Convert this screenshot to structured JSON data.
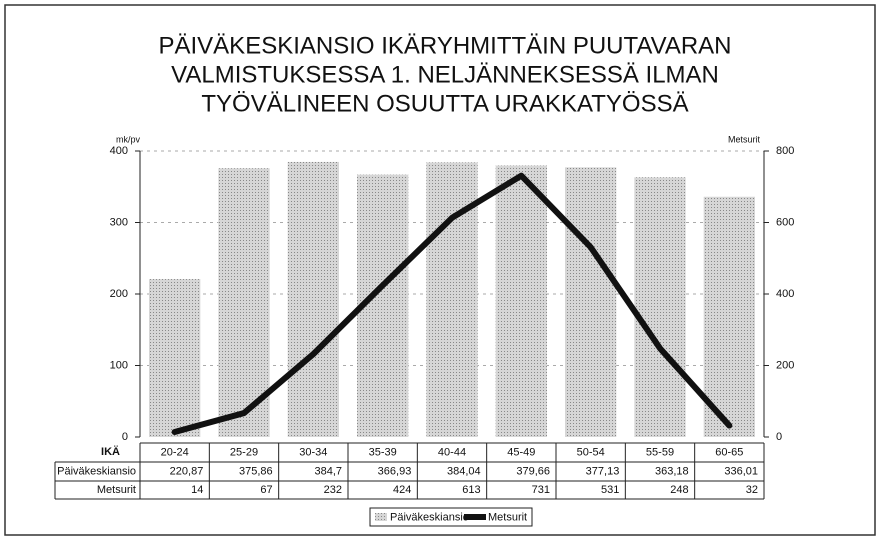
{
  "chart_data": {
    "type": "bar",
    "title": [
      "PÄIVÄKESKIANSIO IKÄRYHMITTÄIN PUUTAVARAN",
      "VALMISTUKSESSA 1. NELJÄNNEKSESSÄ ILMAN",
      "TYÖVÄLINEEN OSUUTTA URAKKATYÖSSÄ"
    ],
    "y_label": "mk/pv",
    "y2_label": "Metsurit",
    "table_header": "IKÄ",
    "categories": [
      "20-24",
      "25-29",
      "30-34",
      "35-39",
      "40-44",
      "45-49",
      "50-54",
      "55-59",
      "60-65"
    ],
    "series": [
      {
        "name": "Päiväkeskiansio",
        "type": "bar",
        "color": "#c4c4c4",
        "values": [
          220.87,
          375.86,
          384.7,
          366.93,
          384.04,
          379.66,
          377.13,
          363.18,
          336.01
        ],
        "value_labels": [
          "220,87",
          "375,86",
          "384,7",
          "366,93",
          "384,04",
          "379,66",
          "377,13",
          "363,18",
          "336,01"
        ]
      },
      {
        "name": "Metsurit",
        "type": "line",
        "axis": "y2",
        "color": "#111111",
        "values": [
          14,
          67,
          232,
          424,
          613,
          731,
          531,
          248,
          32
        ]
      }
    ],
    "ylim": [
      0,
      400
    ],
    "yticks": [
      0,
      100,
      200,
      300,
      400
    ],
    "y2lim": [
      0,
      800
    ],
    "y2ticks": [
      0,
      200,
      400,
      600,
      800
    ],
    "grid": true
  }
}
